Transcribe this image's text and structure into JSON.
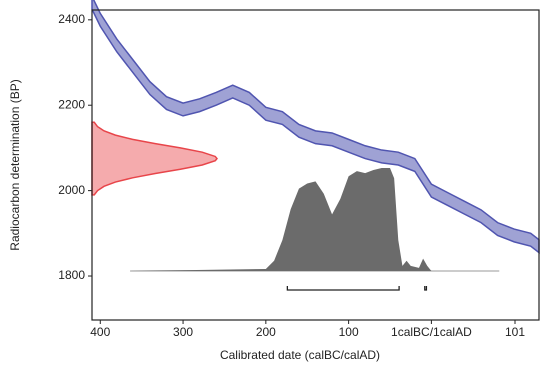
{
  "chart_data": {
    "type": "calibration",
    "xlabel": "Calibrated date (calBC/calAD)",
    "ylabel": "Radiocarbon determination (BP)",
    "xlim": [
      -410,
      130
    ],
    "ylim": [
      1697,
      2423
    ],
    "xticks": [
      {
        "value": -400,
        "label": "400"
      },
      {
        "value": -300,
        "label": "300"
      },
      {
        "value": -200,
        "label": "200"
      },
      {
        "value": -100,
        "label": "100"
      },
      {
        "value": 0,
        "label": "1calBC/1calAD"
      },
      101
    ],
    "yticks": [
      1800,
      2000,
      2200,
      2400
    ],
    "curve": {
      "color": "#5055b0",
      "x": [
        -410,
        -400,
        -380,
        -360,
        -340,
        -320,
        -300,
        -280,
        -260,
        -240,
        -220,
        -200,
        -180,
        -160,
        -140,
        -120,
        -100,
        -80,
        -60,
        -40,
        -20,
        0,
        20,
        40,
        60,
        80,
        100,
        120,
        130
      ],
      "upper": [
        2455,
        2415,
        2355,
        2305,
        2255,
        2220,
        2205,
        2215,
        2230,
        2247,
        2230,
        2195,
        2185,
        2155,
        2140,
        2135,
        2120,
        2105,
        2095,
        2090,
        2075,
        2015,
        1995,
        1975,
        1955,
        1925,
        1910,
        1900,
        1885
      ],
      "lower": [
        2425,
        2385,
        2325,
        2275,
        2225,
        2190,
        2175,
        2185,
        2200,
        2217,
        2200,
        2165,
        2155,
        2125,
        2110,
        2105,
        2090,
        2075,
        2065,
        2060,
        2045,
        1985,
        1965,
        1945,
        1925,
        1895,
        1880,
        1870,
        1855
      ]
    },
    "measurement": {
      "color": "#e8454a",
      "bp": [
        1990,
        2000,
        2010,
        2020,
        2030,
        2040,
        2050,
        2060,
        2070,
        2075,
        2080,
        2090,
        2100,
        2110,
        2120,
        2130,
        2140,
        2150,
        2160
      ],
      "density": [
        0.018,
        0.044,
        0.096,
        0.187,
        0.325,
        0.506,
        0.707,
        0.882,
        0.986,
        1,
        0.986,
        0.882,
        0.707,
        0.506,
        0.325,
        0.187,
        0.096,
        0.044,
        0.018
      ]
    },
    "distribution": {
      "color": "#6b6b6b",
      "x": [
        -364,
        -200,
        -190,
        -180,
        -170,
        -160,
        -150,
        -140,
        -130,
        -120,
        -110,
        -100,
        -90,
        -80,
        -70,
        -60,
        -50,
        -45,
        -40,
        -35,
        -30,
        -25,
        -15,
        -10,
        -5,
        0,
        82
      ],
      "density": [
        0,
        0.02,
        0.1,
        0.3,
        0.6,
        0.8,
        0.85,
        0.87,
        0.75,
        0.55,
        0.7,
        0.92,
        0.97,
        0.95,
        0.98,
        1,
        1,
        0.9,
        0.3,
        0.05,
        0.1,
        0.05,
        0.03,
        0.12,
        0.05,
        0,
        0
      ]
    },
    "ranges": [
      [
        -174,
        -39
      ],
      [
        -8,
        -6
      ]
    ]
  }
}
